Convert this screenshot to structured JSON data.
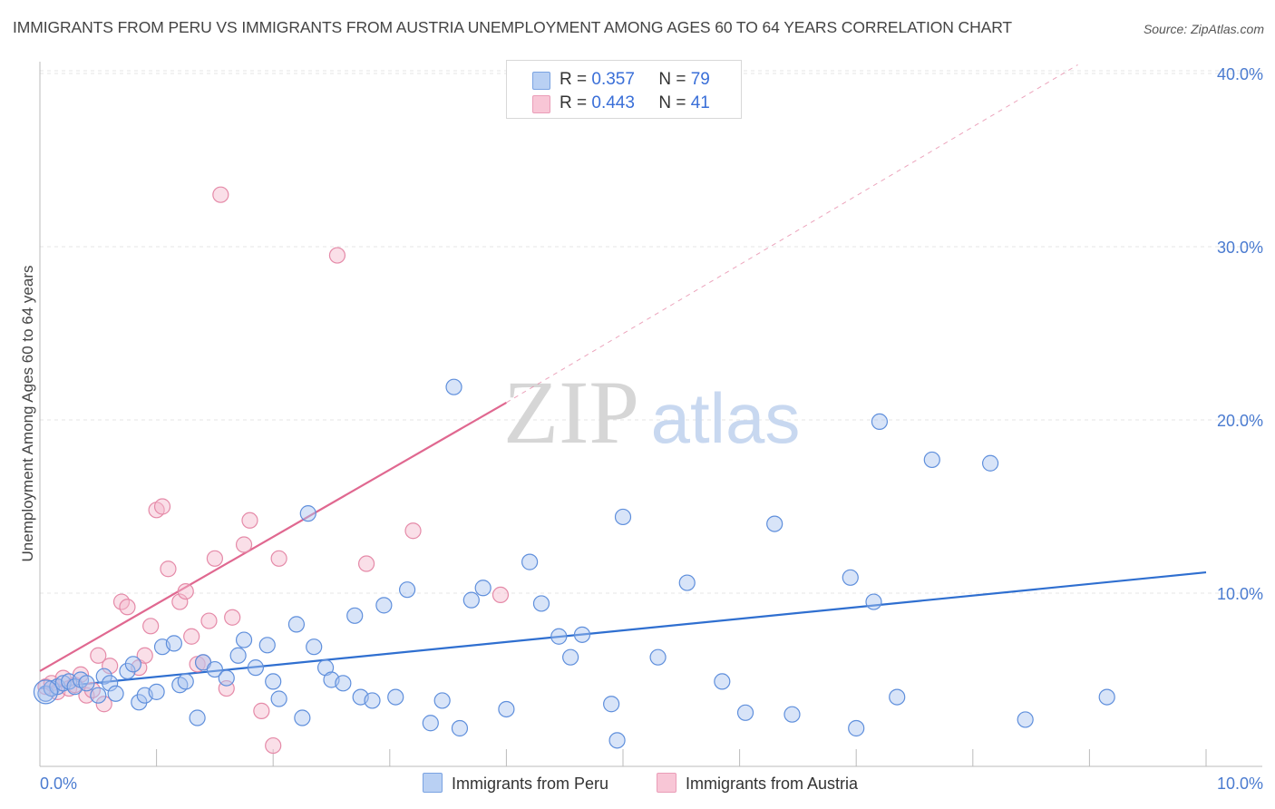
{
  "title": "IMMIGRANTS FROM PERU VS IMMIGRANTS FROM AUSTRIA UNEMPLOYMENT AMONG AGES 60 TO 64 YEARS CORRELATION CHART",
  "source": "Source: ZipAtlas.com",
  "watermark": {
    "zip": "ZIP",
    "atlas": "atlas"
  },
  "legend": {
    "r_label": "R =",
    "n_label": "N =",
    "rows": [
      {
        "r": "0.357",
        "n": "79"
      },
      {
        "r": "0.443",
        "n": "41"
      }
    ]
  },
  "colors": {
    "peru_fill": "#a8c4f0",
    "peru_stroke": "#5f8fdc",
    "peru_line": "#2f6fd0",
    "austria_fill": "#f4b8cc",
    "austria_stroke": "#e58aa8",
    "austria_line": "#e06890",
    "tick_text": "#4a7bd0"
  },
  "chart_data": {
    "type": "scatter",
    "title": "IMMIGRANTS FROM PERU VS IMMIGRANTS FROM AUSTRIA UNEMPLOYMENT AMONG AGES 60 TO 64 YEARS CORRELATION CHART",
    "xlabel": "",
    "ylabel": "Unemployment Among Ages 60 to 64 years",
    "xlim": [
      0,
      10
    ],
    "ylim": [
      0,
      42
    ],
    "x_ticks": [
      "0.0%",
      "10.0%"
    ],
    "y_ticks": [
      {
        "value": 10,
        "label": "10.0%"
      },
      {
        "value": 20,
        "label": "20.0%"
      },
      {
        "value": 30,
        "label": "30.0%"
      },
      {
        "value": 40,
        "label": "40.0%"
      }
    ],
    "grid": true,
    "series": [
      {
        "name": "Immigrants from Peru",
        "r": 0.357,
        "n": 79,
        "trend": {
          "x0": 0.0,
          "y0": 4.5,
          "x1": 10.0,
          "y1": 11.2,
          "dashed_to": null
        },
        "points": [
          [
            0.05,
            4.2
          ],
          [
            0.1,
            4.5
          ],
          [
            0.15,
            4.6
          ],
          [
            0.2,
            4.8
          ],
          [
            0.25,
            4.9
          ],
          [
            0.3,
            4.6
          ],
          [
            0.35,
            5.0
          ],
          [
            0.4,
            4.8
          ],
          [
            0.5,
            4.1
          ],
          [
            0.55,
            5.2
          ],
          [
            0.6,
            4.8
          ],
          [
            0.65,
            4.2
          ],
          [
            0.75,
            5.5
          ],
          [
            0.8,
            5.9
          ],
          [
            0.85,
            3.7
          ],
          [
            0.9,
            4.1
          ],
          [
            1.0,
            4.3
          ],
          [
            1.05,
            6.9
          ],
          [
            1.15,
            7.1
          ],
          [
            1.2,
            4.7
          ],
          [
            1.25,
            4.9
          ],
          [
            1.35,
            2.8
          ],
          [
            1.4,
            6.0
          ],
          [
            1.5,
            5.6
          ],
          [
            1.6,
            5.1
          ],
          [
            1.7,
            6.4
          ],
          [
            1.75,
            7.3
          ],
          [
            1.85,
            5.7
          ],
          [
            1.95,
            7.0
          ],
          [
            2.0,
            4.9
          ],
          [
            2.05,
            3.9
          ],
          [
            2.2,
            8.2
          ],
          [
            2.25,
            2.8
          ],
          [
            2.3,
            14.6
          ],
          [
            2.35,
            6.9
          ],
          [
            2.45,
            5.7
          ],
          [
            2.5,
            5.0
          ],
          [
            2.6,
            4.8
          ],
          [
            2.7,
            8.7
          ],
          [
            2.75,
            4.0
          ],
          [
            2.85,
            3.8
          ],
          [
            2.95,
            9.3
          ],
          [
            3.05,
            4.0
          ],
          [
            3.15,
            10.2
          ],
          [
            3.35,
            2.5
          ],
          [
            3.45,
            3.8
          ],
          [
            3.55,
            21.9
          ],
          [
            3.6,
            2.2
          ],
          [
            3.7,
            9.6
          ],
          [
            3.8,
            10.3
          ],
          [
            4.0,
            3.3
          ],
          [
            4.2,
            11.8
          ],
          [
            4.3,
            9.4
          ],
          [
            4.45,
            7.5
          ],
          [
            4.55,
            6.3
          ],
          [
            4.65,
            7.6
          ],
          [
            4.9,
            3.6
          ],
          [
            4.95,
            1.5
          ],
          [
            5.0,
            14.4
          ],
          [
            5.3,
            6.3
          ],
          [
            5.55,
            10.6
          ],
          [
            5.85,
            4.9
          ],
          [
            6.05,
            3.1
          ],
          [
            6.3,
            14.0
          ],
          [
            6.45,
            3.0
          ],
          [
            6.95,
            10.9
          ],
          [
            7.0,
            2.2
          ],
          [
            7.15,
            9.5
          ],
          [
            7.2,
            19.9
          ],
          [
            7.35,
            4.0
          ],
          [
            7.65,
            17.7
          ],
          [
            8.15,
            17.5
          ],
          [
            8.45,
            2.7
          ],
          [
            9.15,
            4.0
          ]
        ]
      },
      {
        "name": "Immigrants from Austria",
        "r": 0.443,
        "n": 41,
        "trend": {
          "x0": 0.0,
          "y0": 5.5,
          "x1": 4.0,
          "y1": 21.0,
          "dashed_to": {
            "x": 8.9,
            "y": 40.5
          }
        },
        "points": [
          [
            0.05,
            4.6
          ],
          [
            0.1,
            4.8
          ],
          [
            0.15,
            4.3
          ],
          [
            0.2,
            5.1
          ],
          [
            0.25,
            4.5
          ],
          [
            0.3,
            4.7
          ],
          [
            0.35,
            5.3
          ],
          [
            0.4,
            4.1
          ],
          [
            0.45,
            4.4
          ],
          [
            0.5,
            6.4
          ],
          [
            0.55,
            3.6
          ],
          [
            0.6,
            5.8
          ],
          [
            0.7,
            9.5
          ],
          [
            0.75,
            9.2
          ],
          [
            0.85,
            5.7
          ],
          [
            0.9,
            6.4
          ],
          [
            0.95,
            8.1
          ],
          [
            1.0,
            14.8
          ],
          [
            1.05,
            15.0
          ],
          [
            1.1,
            11.4
          ],
          [
            1.2,
            9.5
          ],
          [
            1.25,
            10.1
          ],
          [
            1.3,
            7.5
          ],
          [
            1.35,
            5.9
          ],
          [
            1.4,
            6.0
          ],
          [
            1.45,
            8.4
          ],
          [
            1.5,
            12.0
          ],
          [
            1.55,
            33.0
          ],
          [
            1.6,
            4.5
          ],
          [
            1.65,
            8.6
          ],
          [
            1.75,
            12.8
          ],
          [
            1.8,
            14.2
          ],
          [
            1.9,
            3.2
          ],
          [
            2.0,
            1.2
          ],
          [
            2.05,
            12.0
          ],
          [
            2.55,
            29.5
          ],
          [
            2.8,
            11.7
          ],
          [
            3.2,
            13.6
          ],
          [
            3.95,
            9.9
          ]
        ]
      }
    ]
  },
  "bottom_legend": [
    "Immigrants from Peru",
    "Immigrants from Austria"
  ]
}
